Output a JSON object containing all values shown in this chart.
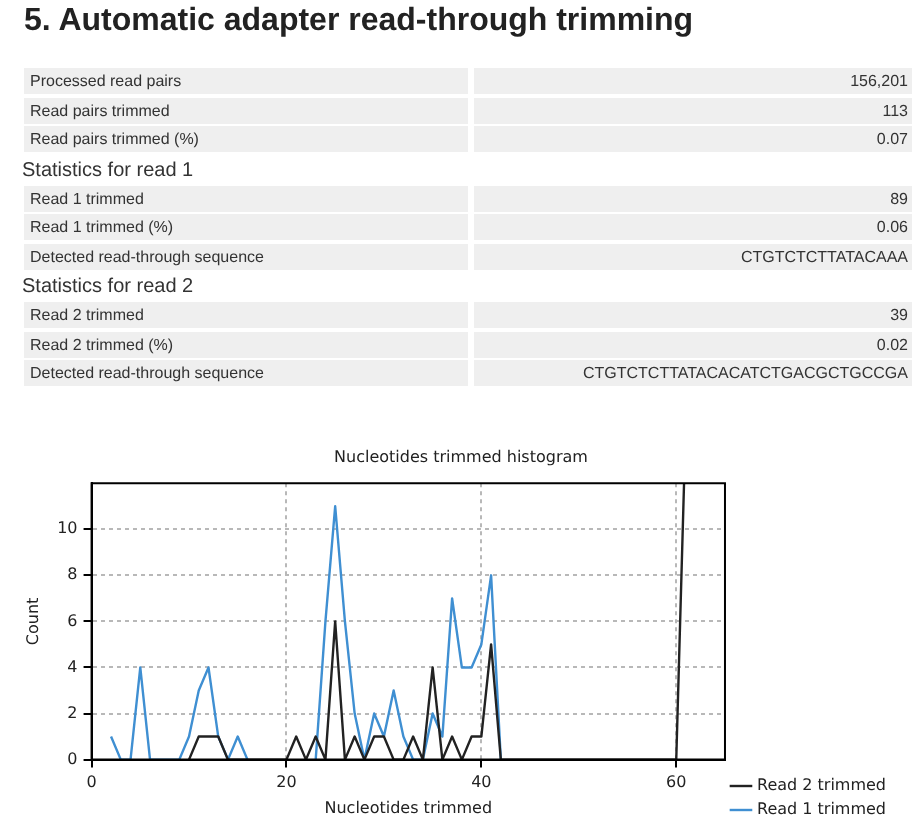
{
  "chart_data": [
    {
      "type": "other",
      "title": "5. Automatic adapter read-through trimming",
      "annotations": [
        "Processed read pairs",
        "156,201",
        "Read pairs trimmed",
        "113",
        "Read pairs trimmed (%)",
        "0.07",
        "Statistics for read 1",
        "Read 1 trimmed",
        "89",
        "Read 1 trimmed (%)",
        "0.06",
        "Detected read-through sequence",
        "CTGTCTCTTATACAAA",
        "Statistics for read 2",
        "Read 2 trimmed",
        "39",
        "Read 2 trimmed (%)",
        "0.02",
        "Detected read-through sequence",
        "CTGTCTCTTATACACATCTGACGCTGCCGA"
      ]
    },
    {
      "type": "line",
      "title": "Nucleotides trimmed histogram",
      "xlabel": "Nucleotides trimmed",
      "ylabel": "Count",
      "x": [
        2,
        3,
        4,
        5,
        6,
        7,
        8,
        9,
        10,
        11,
        12,
        13,
        14,
        15,
        16,
        17,
        18,
        19,
        20,
        21,
        22,
        23,
        24,
        25,
        26,
        27,
        28,
        29,
        30,
        31,
        32,
        33,
        34,
        35,
        36,
        37,
        38,
        39,
        40,
        41,
        42,
        43,
        44,
        45,
        46,
        47,
        48,
        49,
        50,
        51,
        52,
        53,
        54,
        55,
        56,
        57,
        58,
        59,
        60,
        60.8
      ],
      "series": [
        {
          "name": "Read 2 trimmed",
          "color": "#222222",
          "values": [
            null,
            null,
            null,
            null,
            null,
            null,
            null,
            null,
            0,
            1,
            1,
            1,
            0,
            0,
            0,
            0,
            0,
            0,
            0,
            1,
            0,
            1,
            0,
            6,
            0,
            1,
            0,
            1,
            1,
            0,
            0,
            1,
            0,
            4,
            0,
            1,
            0,
            1,
            1,
            5,
            0,
            0,
            0,
            0,
            0,
            0,
            0,
            0,
            0,
            0,
            0,
            0,
            0,
            0,
            0,
            0,
            0,
            0,
            0,
            12
          ]
        },
        {
          "name": "Read 1 trimmed",
          "color": "#3f8fd2",
          "values": [
            1,
            0,
            0,
            4,
            0,
            0,
            0,
            0,
            1,
            3,
            4,
            1,
            0,
            1,
            0,
            null,
            null,
            null,
            null,
            null,
            null,
            0,
            6,
            11,
            6,
            2,
            0,
            2,
            1,
            3,
            1,
            0,
            0,
            2,
            1,
            7,
            4,
            4,
            5,
            8,
            0,
            null,
            null,
            null,
            null,
            null,
            null,
            null,
            null,
            null,
            null,
            null,
            null,
            null,
            null,
            null,
            null,
            null,
            null,
            null
          ]
        }
      ],
      "xlim": [
        0,
        65
      ],
      "xticks": [
        0,
        20,
        40,
        60
      ],
      "ylim": [
        0,
        12
      ],
      "yticks": [
        0,
        2,
        4,
        6,
        8,
        10
      ],
      "grid": true,
      "legend": "right",
      "line_style": "solid",
      "marker": "none"
    }
  ]
}
